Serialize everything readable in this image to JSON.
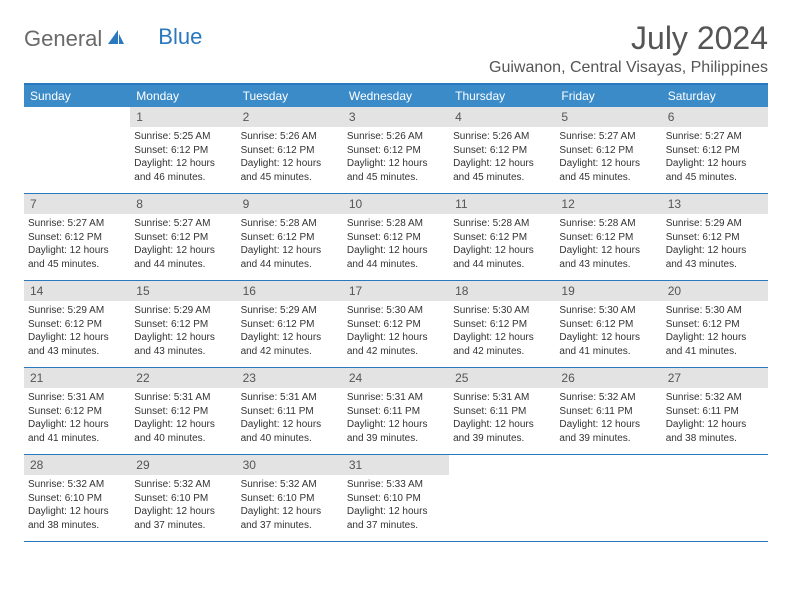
{
  "logo": {
    "part1": "General",
    "part2": "Blue"
  },
  "title": "July 2024",
  "location": "Guiwanon, Central Visayas, Philippines",
  "colors": {
    "header_bar": "#3b8bc9",
    "border": "#2a78bd",
    "daynum_bg": "#e3e3e3",
    "text": "#333333",
    "title_text": "#555555"
  },
  "weekdays": [
    "Sunday",
    "Monday",
    "Tuesday",
    "Wednesday",
    "Thursday",
    "Friday",
    "Saturday"
  ],
  "weeks": [
    [
      {
        "n": "",
        "sr": "",
        "ss": "",
        "dl": ""
      },
      {
        "n": "1",
        "sr": "Sunrise: 5:25 AM",
        "ss": "Sunset: 6:12 PM",
        "dl": "Daylight: 12 hours and 46 minutes."
      },
      {
        "n": "2",
        "sr": "Sunrise: 5:26 AM",
        "ss": "Sunset: 6:12 PM",
        "dl": "Daylight: 12 hours and 45 minutes."
      },
      {
        "n": "3",
        "sr": "Sunrise: 5:26 AM",
        "ss": "Sunset: 6:12 PM",
        "dl": "Daylight: 12 hours and 45 minutes."
      },
      {
        "n": "4",
        "sr": "Sunrise: 5:26 AM",
        "ss": "Sunset: 6:12 PM",
        "dl": "Daylight: 12 hours and 45 minutes."
      },
      {
        "n": "5",
        "sr": "Sunrise: 5:27 AM",
        "ss": "Sunset: 6:12 PM",
        "dl": "Daylight: 12 hours and 45 minutes."
      },
      {
        "n": "6",
        "sr": "Sunrise: 5:27 AM",
        "ss": "Sunset: 6:12 PM",
        "dl": "Daylight: 12 hours and 45 minutes."
      }
    ],
    [
      {
        "n": "7",
        "sr": "Sunrise: 5:27 AM",
        "ss": "Sunset: 6:12 PM",
        "dl": "Daylight: 12 hours and 45 minutes."
      },
      {
        "n": "8",
        "sr": "Sunrise: 5:27 AM",
        "ss": "Sunset: 6:12 PM",
        "dl": "Daylight: 12 hours and 44 minutes."
      },
      {
        "n": "9",
        "sr": "Sunrise: 5:28 AM",
        "ss": "Sunset: 6:12 PM",
        "dl": "Daylight: 12 hours and 44 minutes."
      },
      {
        "n": "10",
        "sr": "Sunrise: 5:28 AM",
        "ss": "Sunset: 6:12 PM",
        "dl": "Daylight: 12 hours and 44 minutes."
      },
      {
        "n": "11",
        "sr": "Sunrise: 5:28 AM",
        "ss": "Sunset: 6:12 PM",
        "dl": "Daylight: 12 hours and 44 minutes."
      },
      {
        "n": "12",
        "sr": "Sunrise: 5:28 AM",
        "ss": "Sunset: 6:12 PM",
        "dl": "Daylight: 12 hours and 43 minutes."
      },
      {
        "n": "13",
        "sr": "Sunrise: 5:29 AM",
        "ss": "Sunset: 6:12 PM",
        "dl": "Daylight: 12 hours and 43 minutes."
      }
    ],
    [
      {
        "n": "14",
        "sr": "Sunrise: 5:29 AM",
        "ss": "Sunset: 6:12 PM",
        "dl": "Daylight: 12 hours and 43 minutes."
      },
      {
        "n": "15",
        "sr": "Sunrise: 5:29 AM",
        "ss": "Sunset: 6:12 PM",
        "dl": "Daylight: 12 hours and 43 minutes."
      },
      {
        "n": "16",
        "sr": "Sunrise: 5:29 AM",
        "ss": "Sunset: 6:12 PM",
        "dl": "Daylight: 12 hours and 42 minutes."
      },
      {
        "n": "17",
        "sr": "Sunrise: 5:30 AM",
        "ss": "Sunset: 6:12 PM",
        "dl": "Daylight: 12 hours and 42 minutes."
      },
      {
        "n": "18",
        "sr": "Sunrise: 5:30 AM",
        "ss": "Sunset: 6:12 PM",
        "dl": "Daylight: 12 hours and 42 minutes."
      },
      {
        "n": "19",
        "sr": "Sunrise: 5:30 AM",
        "ss": "Sunset: 6:12 PM",
        "dl": "Daylight: 12 hours and 41 minutes."
      },
      {
        "n": "20",
        "sr": "Sunrise: 5:30 AM",
        "ss": "Sunset: 6:12 PM",
        "dl": "Daylight: 12 hours and 41 minutes."
      }
    ],
    [
      {
        "n": "21",
        "sr": "Sunrise: 5:31 AM",
        "ss": "Sunset: 6:12 PM",
        "dl": "Daylight: 12 hours and 41 minutes."
      },
      {
        "n": "22",
        "sr": "Sunrise: 5:31 AM",
        "ss": "Sunset: 6:12 PM",
        "dl": "Daylight: 12 hours and 40 minutes."
      },
      {
        "n": "23",
        "sr": "Sunrise: 5:31 AM",
        "ss": "Sunset: 6:11 PM",
        "dl": "Daylight: 12 hours and 40 minutes."
      },
      {
        "n": "24",
        "sr": "Sunrise: 5:31 AM",
        "ss": "Sunset: 6:11 PM",
        "dl": "Daylight: 12 hours and 39 minutes."
      },
      {
        "n": "25",
        "sr": "Sunrise: 5:31 AM",
        "ss": "Sunset: 6:11 PM",
        "dl": "Daylight: 12 hours and 39 minutes."
      },
      {
        "n": "26",
        "sr": "Sunrise: 5:32 AM",
        "ss": "Sunset: 6:11 PM",
        "dl": "Daylight: 12 hours and 39 minutes."
      },
      {
        "n": "27",
        "sr": "Sunrise: 5:32 AM",
        "ss": "Sunset: 6:11 PM",
        "dl": "Daylight: 12 hours and 38 minutes."
      }
    ],
    [
      {
        "n": "28",
        "sr": "Sunrise: 5:32 AM",
        "ss": "Sunset: 6:10 PM",
        "dl": "Daylight: 12 hours and 38 minutes."
      },
      {
        "n": "29",
        "sr": "Sunrise: 5:32 AM",
        "ss": "Sunset: 6:10 PM",
        "dl": "Daylight: 12 hours and 37 minutes."
      },
      {
        "n": "30",
        "sr": "Sunrise: 5:32 AM",
        "ss": "Sunset: 6:10 PM",
        "dl": "Daylight: 12 hours and 37 minutes."
      },
      {
        "n": "31",
        "sr": "Sunrise: 5:33 AM",
        "ss": "Sunset: 6:10 PM",
        "dl": "Daylight: 12 hours and 37 minutes."
      },
      {
        "n": "",
        "sr": "",
        "ss": "",
        "dl": ""
      },
      {
        "n": "",
        "sr": "",
        "ss": "",
        "dl": ""
      },
      {
        "n": "",
        "sr": "",
        "ss": "",
        "dl": ""
      }
    ]
  ]
}
